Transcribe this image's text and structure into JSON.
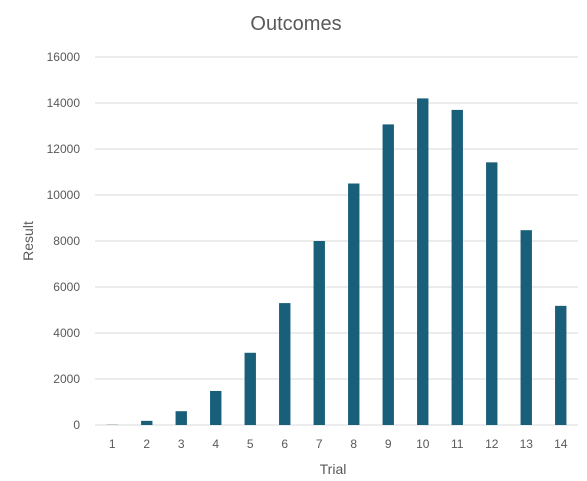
{
  "chart_data": {
    "type": "bar",
    "title": "Outcomes",
    "xlabel": "Trial",
    "ylabel": "Result",
    "categories": [
      "1",
      "2",
      "3",
      "4",
      "5",
      "6",
      "7",
      "8",
      "9",
      "10",
      "11",
      "12",
      "13",
      "14"
    ],
    "series": [
      {
        "values": [
          10,
          180,
          600,
          1480,
          3140,
          5300,
          8000,
          10500,
          13070,
          14200,
          13700,
          11420,
          8470,
          5180
        ]
      }
    ],
    "ylim": [
      0,
      16000
    ],
    "yticks": [
      0,
      2000,
      4000,
      6000,
      8000,
      10000,
      12000,
      14000,
      16000
    ],
    "grid": true,
    "legend": "none",
    "bar_color": "#1a5f7a"
  }
}
